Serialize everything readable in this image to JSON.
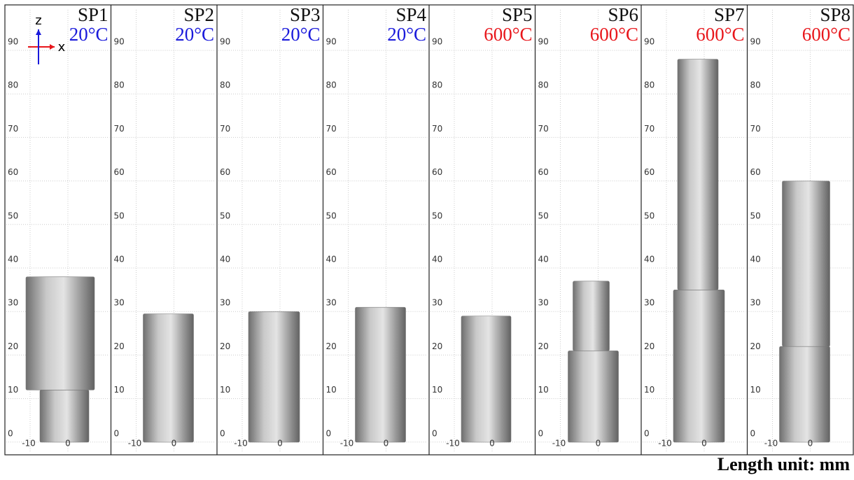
{
  "panels": [
    {
      "label": "SP1",
      "temperature": "20°C",
      "color": "#1a1adb"
    },
    {
      "label": "SP2",
      "temperature": "20°C",
      "color": "#1a1adb"
    },
    {
      "label": "SP3",
      "temperature": "20°C",
      "color": "#1a1adb"
    },
    {
      "label": "SP4",
      "temperature": "20°C",
      "color": "#1a1adb"
    },
    {
      "label": "SP5",
      "temperature": "600°C",
      "color": "#e8161b"
    },
    {
      "label": "SP6",
      "temperature": "600°C",
      "color": "#e8161b"
    },
    {
      "label": "SP7",
      "temperature": "600°C",
      "color": "#e8161b"
    },
    {
      "label": "SP8",
      "temperature": "600°C",
      "color": "#e8161b"
    }
  ],
  "y_tick_labels": [
    "90",
    "80",
    "70",
    "60",
    "50",
    "40",
    "30",
    "20",
    "10",
    "0"
  ],
  "x_tick_labels": [
    "-10",
    "0"
  ],
  "axis_labels": {
    "z": "z",
    "x": "x"
  },
  "footer": "Length unit: mm"
}
